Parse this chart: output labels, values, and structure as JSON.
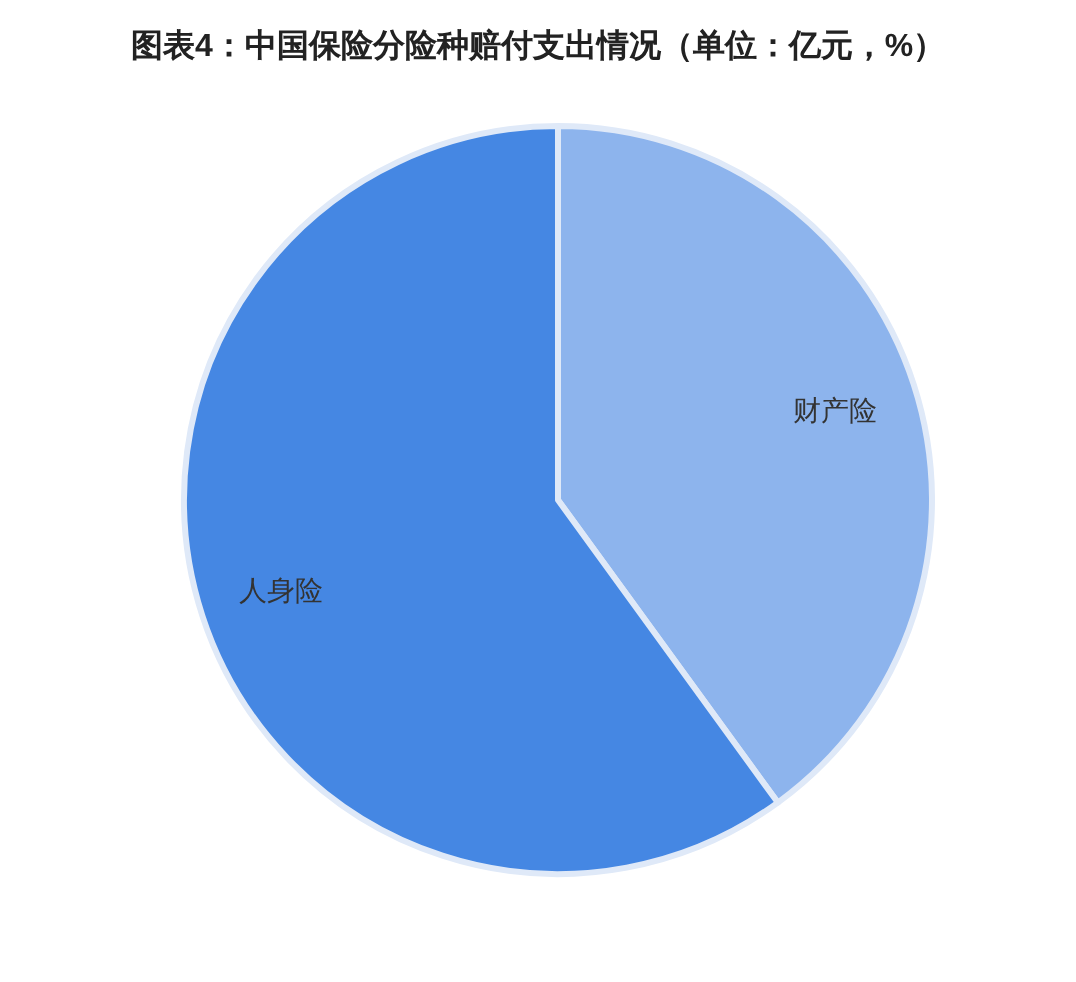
{
  "chart_data": {
    "type": "pie",
    "title": "图表4：中国保险分险种赔付支出情况（单位：亿元，%）",
    "categories": [
      "财产险",
      "人身险"
    ],
    "values": [
      40,
      60
    ],
    "colors": [
      "#8db4ed",
      "#4587e3"
    ]
  }
}
